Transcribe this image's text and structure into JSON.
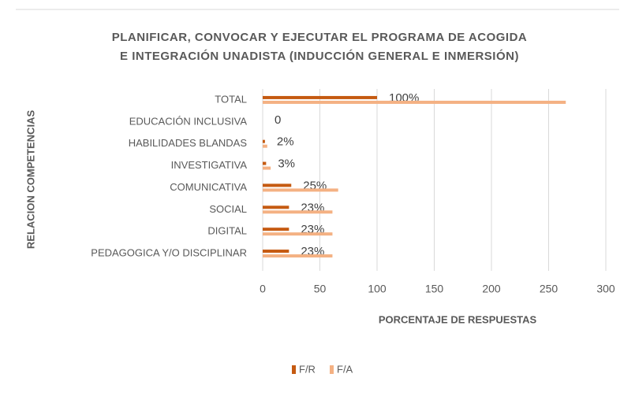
{
  "chart_data": {
    "type": "bar",
    "orientation": "horizontal",
    "title": [
      "PLANIFICAR, CONVOCAR Y EJECUTAR EL PROGRAMA DE ACOGIDA",
      "E INTEGRACIÓN UNADISTA (INDUCCIÓN GENERAL E INMERSIÓN)"
    ],
    "xlabel": "PORCENTAJE DE RESPUESTAS",
    "ylabel": "RELACION COMPETENCIAS",
    "categories": [
      "TOTAL",
      "EDUCACIÓN INCLUSIVA",
      "HABILIDADES BLANDAS",
      "INVESTIGATIVA",
      "COMUNICATIVA",
      "SOCIAL",
      "DIGITAL",
      "PEDAGOGICA Y/O DISCIPLINAR"
    ],
    "series": [
      {
        "name": "F/R",
        "color": "#c55a11",
        "values": [
          100,
          0,
          2,
          3,
          25,
          23,
          23,
          23
        ],
        "value_labels": [
          "100%",
          "0",
          "2%",
          "3%",
          "25%",
          "23%",
          "23%",
          "23%"
        ]
      },
      {
        "name": "F/A",
        "color": "#f4b183",
        "values": [
          265,
          0,
          4,
          7,
          66,
          61,
          61,
          61
        ]
      }
    ],
    "xlim": [
      0,
      300
    ],
    "xticks": [
      0,
      50,
      100,
      150,
      200,
      250,
      300
    ],
    "grid": true,
    "legend": "bottom"
  }
}
